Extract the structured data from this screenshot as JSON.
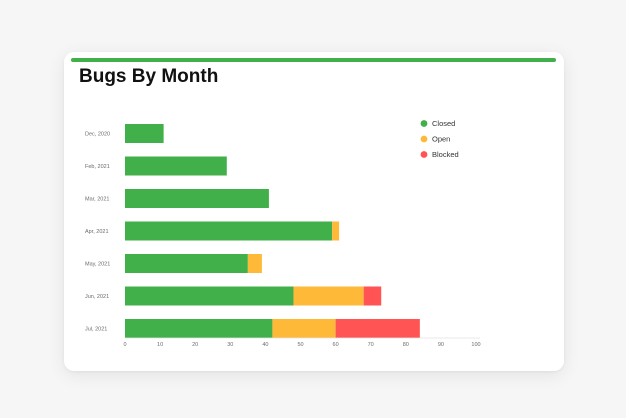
{
  "card": {
    "title": "Bugs By Month",
    "accent_color": "#41b04a"
  },
  "chart_data": {
    "type": "bar",
    "orientation": "horizontal",
    "stacked": true,
    "title": "Bugs By Month",
    "categories": [
      "Dec, 2020",
      "Feb, 2021",
      "Mar, 2021",
      "Apr, 2021",
      "May, 2021",
      "Jun, 2021",
      "Jul, 2021"
    ],
    "series": [
      {
        "name": "Closed",
        "color": "#41b04a",
        "values": [
          11,
          29,
          41,
          59,
          35,
          48,
          42
        ]
      },
      {
        "name": "Open",
        "color": "#ffb938",
        "values": [
          0,
          0,
          0,
          2,
          4,
          20,
          18
        ]
      },
      {
        "name": "Blocked",
        "color": "#ff5453",
        "values": [
          0,
          0,
          0,
          0,
          0,
          5,
          24
        ]
      }
    ],
    "xlim": [
      0,
      100
    ],
    "xticks": [
      "0",
      "10",
      "20",
      "30",
      "40",
      "50",
      "60",
      "70",
      "80",
      "90",
      "100"
    ],
    "grid": false,
    "legend_position": "top-right"
  }
}
